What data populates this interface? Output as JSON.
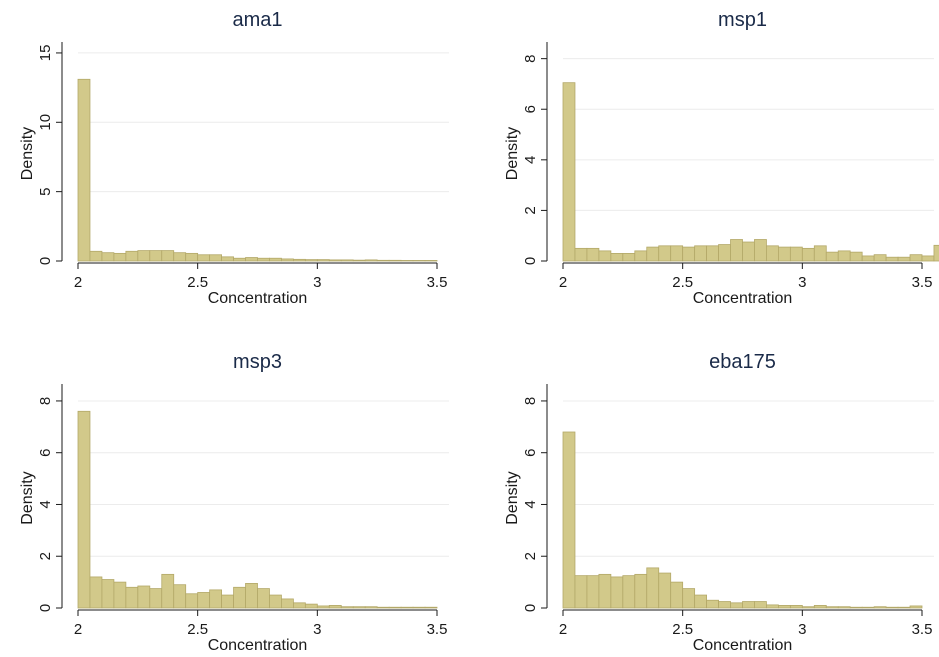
{
  "colors": {
    "bar_fill": "#d2c98a",
    "bar_stroke": "#b3a868",
    "title": "#1a2a48",
    "grid": "#ececec"
  },
  "chart_data": [
    {
      "type": "bar",
      "title": "ama1",
      "xlabel": "Concentration",
      "ylabel": "Density",
      "xlim": [
        2,
        3.5
      ],
      "ylim": [
        0,
        15.5
      ],
      "xticks": [
        2,
        2.5,
        3,
        3.5
      ],
      "yticks": [
        0,
        5,
        10,
        15
      ],
      "grid": true,
      "bin_start": 2,
      "bin_width": 0.05,
      "values": [
        13.1,
        0.7,
        0.6,
        0.55,
        0.7,
        0.75,
        0.75,
        0.75,
        0.6,
        0.55,
        0.45,
        0.45,
        0.3,
        0.2,
        0.25,
        0.2,
        0.2,
        0.15,
        0.12,
        0.1,
        0.1,
        0.08,
        0.08,
        0.06,
        0.08,
        0.05,
        0.05,
        0.04,
        0.04,
        0.04
      ]
    },
    {
      "type": "bar",
      "title": "msp1",
      "xlabel": "Concentration",
      "ylabel": "Density",
      "xlim": [
        2,
        3.5
      ],
      "ylim": [
        0,
        8.5
      ],
      "xticks": [
        2,
        2.5,
        3,
        3.5
      ],
      "yticks": [
        0,
        2,
        4,
        6,
        8
      ],
      "grid": true,
      "bin_start": 2,
      "bin_width": 0.05,
      "values": [
        7.05,
        0.5,
        0.5,
        0.4,
        0.3,
        0.3,
        0.4,
        0.55,
        0.6,
        0.6,
        0.55,
        0.6,
        0.6,
        0.65,
        0.85,
        0.75,
        0.85,
        0.6,
        0.55,
        0.55,
        0.5,
        0.6,
        0.35,
        0.4,
        0.35,
        0.2,
        0.25,
        0.15,
        0.15,
        0.25,
        0.2,
        0.62
      ]
    },
    {
      "type": "bar",
      "title": "msp3",
      "xlabel": "Concentration",
      "ylabel": "Density",
      "xlim": [
        2,
        3.5
      ],
      "ylim": [
        0,
        8.5
      ],
      "xticks": [
        2,
        2.5,
        3,
        3.5
      ],
      "yticks": [
        0,
        2,
        4,
        6,
        8
      ],
      "grid": true,
      "bin_start": 2,
      "bin_width": 0.05,
      "values": [
        7.6,
        1.2,
        1.1,
        1.0,
        0.8,
        0.85,
        0.75,
        1.3,
        0.9,
        0.55,
        0.6,
        0.7,
        0.5,
        0.8,
        0.95,
        0.75,
        0.5,
        0.35,
        0.2,
        0.15,
        0.08,
        0.1,
        0.05,
        0.05,
        0.05,
        0.03,
        0.03,
        0.03,
        0.03,
        0.03
      ]
    },
    {
      "type": "bar",
      "title": "eba175",
      "xlabel": "Concentration",
      "ylabel": "Density",
      "xlim": [
        2,
        3.5
      ],
      "ylim": [
        0,
        8.5
      ],
      "xticks": [
        2,
        2.5,
        3,
        3.5
      ],
      "yticks": [
        0,
        2,
        4,
        6,
        8
      ],
      "grid": true,
      "bin_start": 2,
      "bin_width": 0.05,
      "values": [
        6.8,
        1.25,
        1.25,
        1.3,
        1.2,
        1.25,
        1.3,
        1.55,
        1.35,
        1.0,
        0.75,
        0.5,
        0.3,
        0.25,
        0.2,
        0.25,
        0.25,
        0.12,
        0.1,
        0.1,
        0.05,
        0.1,
        0.05,
        0.05,
        0.03,
        0.03,
        0.05,
        0.03,
        0.03,
        0.08
      ]
    }
  ]
}
